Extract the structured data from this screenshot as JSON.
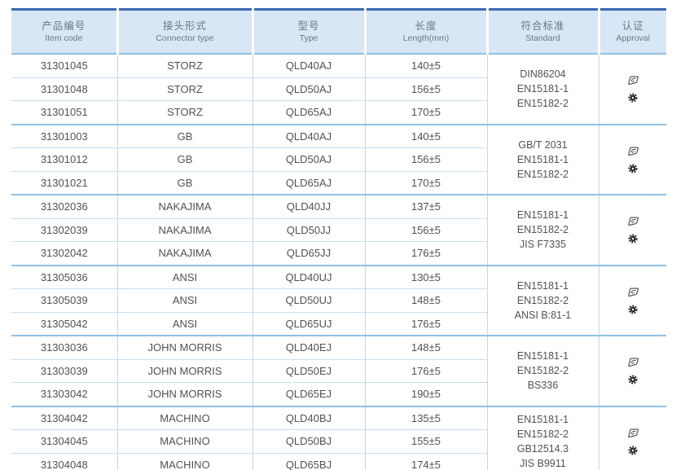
{
  "colors": {
    "accent": "#3a6ab2",
    "header_bg": "#d7e7f5",
    "header_text": "#6d7787",
    "body_text": "#4f5255",
    "thin_line": "#c7def1",
    "group_line": "#92bfe2"
  },
  "table": {
    "header": {
      "columns": [
        {
          "zh": "产品编号",
          "en": "Item code"
        },
        {
          "zh": "接头形式",
          "en": "Connector type"
        },
        {
          "zh": "型号",
          "en": "Type"
        },
        {
          "zh": "长度",
          "en": "Length(mm)"
        },
        {
          "zh": "符合标准",
          "en": "Standard"
        },
        {
          "zh": "认证",
          "en": "Approval"
        }
      ]
    },
    "groups": [
      {
        "connector": "STORZ",
        "rows": [
          {
            "item_code": "31301045",
            "type": "QLD40AJ",
            "length": "140±5"
          },
          {
            "item_code": "31301048",
            "type": "QLD50AJ",
            "length": "156±5"
          },
          {
            "item_code": "31301051",
            "type": "QLD65AJ",
            "length": "170±5"
          }
        ],
        "standards": [
          "DIN86204",
          "EN15181-1",
          "EN15182-2"
        ],
        "approvals": [
          "stamp-logo",
          "gear-seal"
        ]
      },
      {
        "connector": "GB",
        "rows": [
          {
            "item_code": "31301003",
            "type": "QLD40AJ",
            "length": "140±5"
          },
          {
            "item_code": "31301012",
            "type": "QLD50AJ",
            "length": "156±5"
          },
          {
            "item_code": "31301021",
            "type": "QLD65AJ",
            "length": "170±5"
          }
        ],
        "standards": [
          "GB/T 2031",
          "EN15181-1",
          "EN15182-2"
        ],
        "approvals": [
          "stamp-logo",
          "gear-seal"
        ]
      },
      {
        "connector": "NAKAJIMA",
        "rows": [
          {
            "item_code": "31302036",
            "type": "QLD40JJ",
            "length": "137±5"
          },
          {
            "item_code": "31302039",
            "type": "QLD50JJ",
            "length": "156±5"
          },
          {
            "item_code": "31302042",
            "type": "QLD65JJ",
            "length": "176±5"
          }
        ],
        "standards": [
          "EN15181-1",
          "EN15182-2",
          "JIS F7335"
        ],
        "approvals": [
          "stamp-logo",
          "gear-seal"
        ]
      },
      {
        "connector": "ANSI",
        "rows": [
          {
            "item_code": "31305036",
            "type": "QLD40UJ",
            "length": "130±5"
          },
          {
            "item_code": "31305039",
            "type": "QLD50UJ",
            "length": "148±5"
          },
          {
            "item_code": "31305042",
            "type": "QLD65UJ",
            "length": "176±5"
          }
        ],
        "standards": [
          "EN15181-1",
          "EN15182-2",
          "ANSI B:81-1"
        ],
        "approvals": [
          "stamp-logo",
          "gear-seal"
        ]
      },
      {
        "connector": "JOHN MORRIS",
        "rows": [
          {
            "item_code": "31303036",
            "type": "QLD40EJ",
            "length": "148±5"
          },
          {
            "item_code": "31303039",
            "type": "QLD50EJ",
            "length": "176±5"
          },
          {
            "item_code": "31303042",
            "type": "QLD65EJ",
            "length": "190±5"
          }
        ],
        "standards": [
          "EN15181-1",
          "EN15182-2",
          "BS336"
        ],
        "approvals": [
          "stamp-logo",
          "gear-seal"
        ]
      },
      {
        "connector": "MACHINO",
        "rows": [
          {
            "item_code": "31304042",
            "type": "QLD40BJ",
            "length": "135±5"
          },
          {
            "item_code": "31304045",
            "type": "QLD50BJ",
            "length": "155±5"
          },
          {
            "item_code": "31304048",
            "type": "QLD65BJ",
            "length": "174±5"
          }
        ],
        "standards": [
          "EN15181-1",
          "EN15182-2",
          "GB12514.3",
          "JIS B9911"
        ],
        "approvals": [
          "stamp-logo",
          "gear-seal"
        ]
      }
    ]
  }
}
